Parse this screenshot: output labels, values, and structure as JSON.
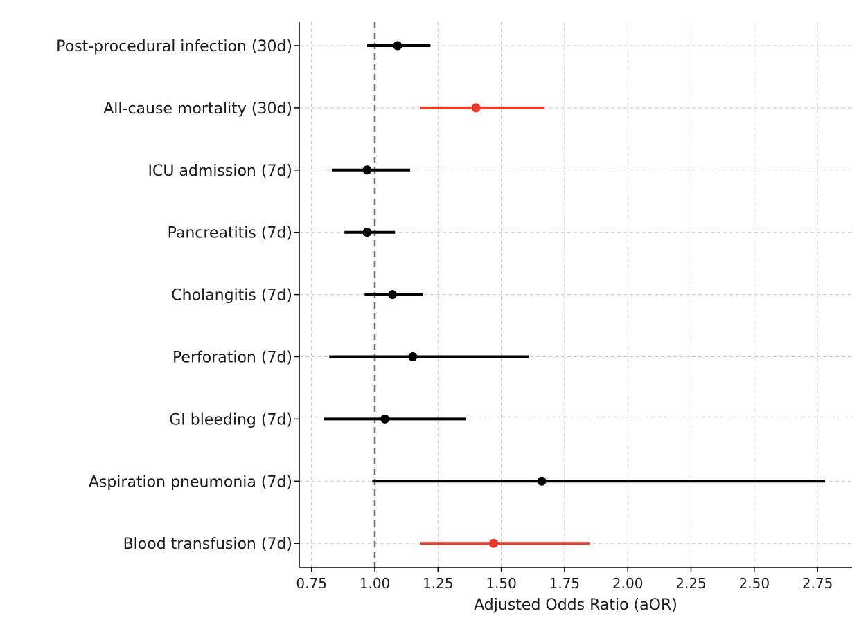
{
  "chart_data": {
    "type": "forest",
    "title": "",
    "xlabel": "Adjusted Odds Ratio (aOR)",
    "ylabel": "",
    "xlim": [
      0.7,
      2.9
    ],
    "xticks": [
      0.75,
      1.0,
      1.25,
      1.5,
      1.75,
      2.0,
      2.25,
      2.5,
      2.75
    ],
    "xtick_labels": [
      "0.75",
      "1.00",
      "1.25",
      "1.50",
      "1.75",
      "2.00",
      "2.25",
      "2.50",
      "2.75"
    ],
    "reference_line": 1.0,
    "grid": true,
    "colors": {
      "significant": "#e8392b",
      "nonsignificant": "#000000",
      "reference": "#707070",
      "grid": "#c8c8c8",
      "axis": "#000000"
    },
    "outcomes": [
      {
        "label": "Post-procedural infection (30d)",
        "aor": 1.09,
        "lower": 0.97,
        "upper": 1.22,
        "significant": false
      },
      {
        "label": "All-cause mortality (30d)",
        "aor": 1.4,
        "lower": 1.18,
        "upper": 1.67,
        "significant": true
      },
      {
        "label": "ICU admission (7d)",
        "aor": 0.97,
        "lower": 0.83,
        "upper": 1.14,
        "significant": false
      },
      {
        "label": "Pancreatitis (7d)",
        "aor": 0.97,
        "lower": 0.88,
        "upper": 1.08,
        "significant": false
      },
      {
        "label": "Cholangitis (7d)",
        "aor": 1.07,
        "lower": 0.96,
        "upper": 1.19,
        "significant": false
      },
      {
        "label": "Perforation (7d)",
        "aor": 1.15,
        "lower": 0.82,
        "upper": 1.61,
        "significant": false
      },
      {
        "label": "GI bleeding (7d)",
        "aor": 1.04,
        "lower": 0.8,
        "upper": 1.36,
        "significant": false
      },
      {
        "label": "Aspiration pneumonia (7d)",
        "aor": 1.66,
        "lower": 0.99,
        "upper": 2.78,
        "significant": false
      },
      {
        "label": "Blood transfusion (7d)",
        "aor": 1.47,
        "lower": 1.18,
        "upper": 1.85,
        "significant": true
      }
    ]
  }
}
